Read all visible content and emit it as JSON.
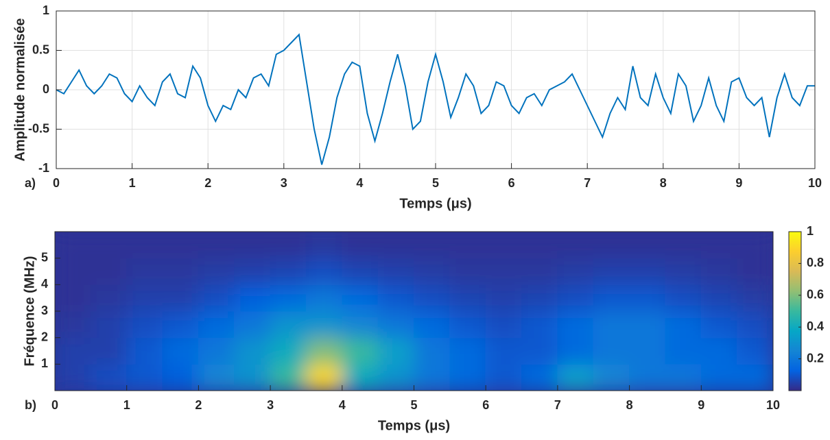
{
  "chart_data": [
    {
      "type": "line",
      "panel_label": "a)",
      "xlabel": "Temps (μs)",
      "ylabel": "Amplitude normalisée",
      "xlim": [
        0,
        10
      ],
      "ylim": [
        -1,
        1
      ],
      "xticks": [
        0,
        1,
        2,
        3,
        4,
        5,
        6,
        7,
        8,
        9,
        10
      ],
      "yticks": [
        -1,
        -0.5,
        0,
        0.5,
        1
      ],
      "grid": true,
      "x": [
        0,
        0.1,
        0.2,
        0.3,
        0.4,
        0.5,
        0.6,
        0.7,
        0.8,
        0.9,
        1,
        1.1,
        1.2,
        1.3,
        1.4,
        1.5,
        1.6,
        1.7,
        1.8,
        1.9,
        2,
        2.1,
        2.2,
        2.3,
        2.4,
        2.5,
        2.6,
        2.7,
        2.8,
        2.9,
        3,
        3.1,
        3.2,
        3.3,
        3.4,
        3.5,
        3.6,
        3.7,
        3.8,
        3.9,
        4,
        4.1,
        4.2,
        4.3,
        4.4,
        4.5,
        4.6,
        4.7,
        4.8,
        4.9,
        5,
        5.1,
        5.2,
        5.3,
        5.4,
        5.5,
        5.6,
        5.7,
        5.8,
        5.9,
        6,
        6.1,
        6.2,
        6.3,
        6.4,
        6.5,
        6.6,
        6.7,
        6.8,
        6.9,
        7,
        7.1,
        7.2,
        7.3,
        7.4,
        7.5,
        7.6,
        7.7,
        7.8,
        7.9,
        8,
        8.1,
        8.2,
        8.3,
        8.4,
        8.5,
        8.6,
        8.7,
        8.8,
        8.9,
        9,
        9.1,
        9.2,
        9.3,
        9.4,
        9.5,
        9.6,
        9.7,
        9.8,
        9.9,
        10
      ],
      "series": [
        {
          "color": "#0072bd",
          "values": [
            0,
            -0.05,
            0.1,
            0.25,
            0.05,
            -0.05,
            0.05,
            0.2,
            0.15,
            -0.05,
            -0.15,
            0.05,
            -0.1,
            -0.2,
            0.1,
            0.2,
            -0.05,
            -0.1,
            0.3,
            0.15,
            -0.2,
            -0.4,
            -0.2,
            -0.25,
            0,
            -0.1,
            0.15,
            0.2,
            0.05,
            0.45,
            0.5,
            0.6,
            0.7,
            0.1,
            -0.5,
            -0.95,
            -0.6,
            -0.1,
            0.2,
            0.35,
            0.3,
            -0.3,
            -0.65,
            -0.3,
            0.1,
            0.45,
            0.05,
            -0.5,
            -0.4,
            0.1,
            0.45,
            0.1,
            -0.35,
            -0.1,
            0.2,
            0.05,
            -0.3,
            -0.2,
            0.1,
            0.05,
            -0.2,
            -0.3,
            -0.1,
            -0.05,
            -0.2,
            0,
            0.05,
            0.1,
            0.2,
            0,
            -0.2,
            -0.4,
            -0.6,
            -0.3,
            -0.1,
            -0.25,
            0.3,
            -0.1,
            -0.2,
            0.2,
            -0.1,
            -0.3,
            0.2,
            0.05,
            -0.4,
            -0.2,
            0.15,
            -0.2,
            -0.4,
            0.1,
            0.15,
            -0.1,
            -0.2,
            -0.1,
            -0.6,
            -0.1,
            0.2,
            -0.1,
            -0.2,
            0.05,
            0.05
          ]
        }
      ]
    },
    {
      "type": "heatmap",
      "panel_label": "b)",
      "xlabel": "Temps (μs)",
      "ylabel": "Fréquence (MHz)",
      "xlim": [
        0,
        10
      ],
      "ylim": [
        0,
        6
      ],
      "xticks": [
        0,
        1,
        2,
        3,
        4,
        5,
        6,
        7,
        8,
        9,
        10
      ],
      "yticks": [
        1,
        2,
        3,
        4,
        5
      ],
      "grid": false,
      "colormap": "parula",
      "clim": [
        0,
        1
      ],
      "cticks": [
        0.2,
        0.4,
        0.6,
        0.8,
        1
      ],
      "x": [
        0.25,
        0.75,
        1.25,
        1.75,
        2.25,
        2.75,
        3.25,
        3.75,
        4.25,
        4.75,
        5.25,
        5.75,
        6.25,
        6.75,
        7.25,
        7.75,
        8.25,
        8.75,
        9.25,
        9.75
      ],
      "y": [
        0.5,
        1.5,
        2.5,
        3.5,
        4.5,
        5.5
      ],
      "z": [
        [
          0.05,
          0.08,
          0.1,
          0.12,
          0.25,
          0.3,
          0.5,
          0.9,
          0.4,
          0.3,
          0.2,
          0.15,
          0.1,
          0.15,
          0.35,
          0.25,
          0.2,
          0.2,
          0.15,
          0.15
        ],
        [
          0.05,
          0.05,
          0.1,
          0.15,
          0.2,
          0.3,
          0.4,
          0.6,
          0.5,
          0.35,
          0.2,
          0.15,
          0.1,
          0.1,
          0.15,
          0.2,
          0.2,
          0.15,
          0.15,
          0.1
        ],
        [
          0.03,
          0.05,
          0.08,
          0.1,
          0.15,
          0.2,
          0.3,
          0.3,
          0.25,
          0.2,
          0.15,
          0.1,
          0.08,
          0.1,
          0.15,
          0.2,
          0.2,
          0.15,
          0.1,
          0.08
        ],
        [
          0.02,
          0.03,
          0.05,
          0.05,
          0.08,
          0.12,
          0.15,
          0.2,
          0.15,
          0.1,
          0.08,
          0.06,
          0.05,
          0.06,
          0.08,
          0.1,
          0.1,
          0.08,
          0.06,
          0.04
        ],
        [
          0.02,
          0.02,
          0.03,
          0.03,
          0.04,
          0.05,
          0.06,
          0.08,
          0.06,
          0.05,
          0.04,
          0.03,
          0.03,
          0.03,
          0.04,
          0.05,
          0.05,
          0.04,
          0.03,
          0.02
        ],
        [
          0.02,
          0.02,
          0.02,
          0.02,
          0.02,
          0.02,
          0.02,
          0.03,
          0.02,
          0.02,
          0.02,
          0.02,
          0.02,
          0.02,
          0.02,
          0.02,
          0.02,
          0.02,
          0.02,
          0.02
        ]
      ]
    }
  ]
}
